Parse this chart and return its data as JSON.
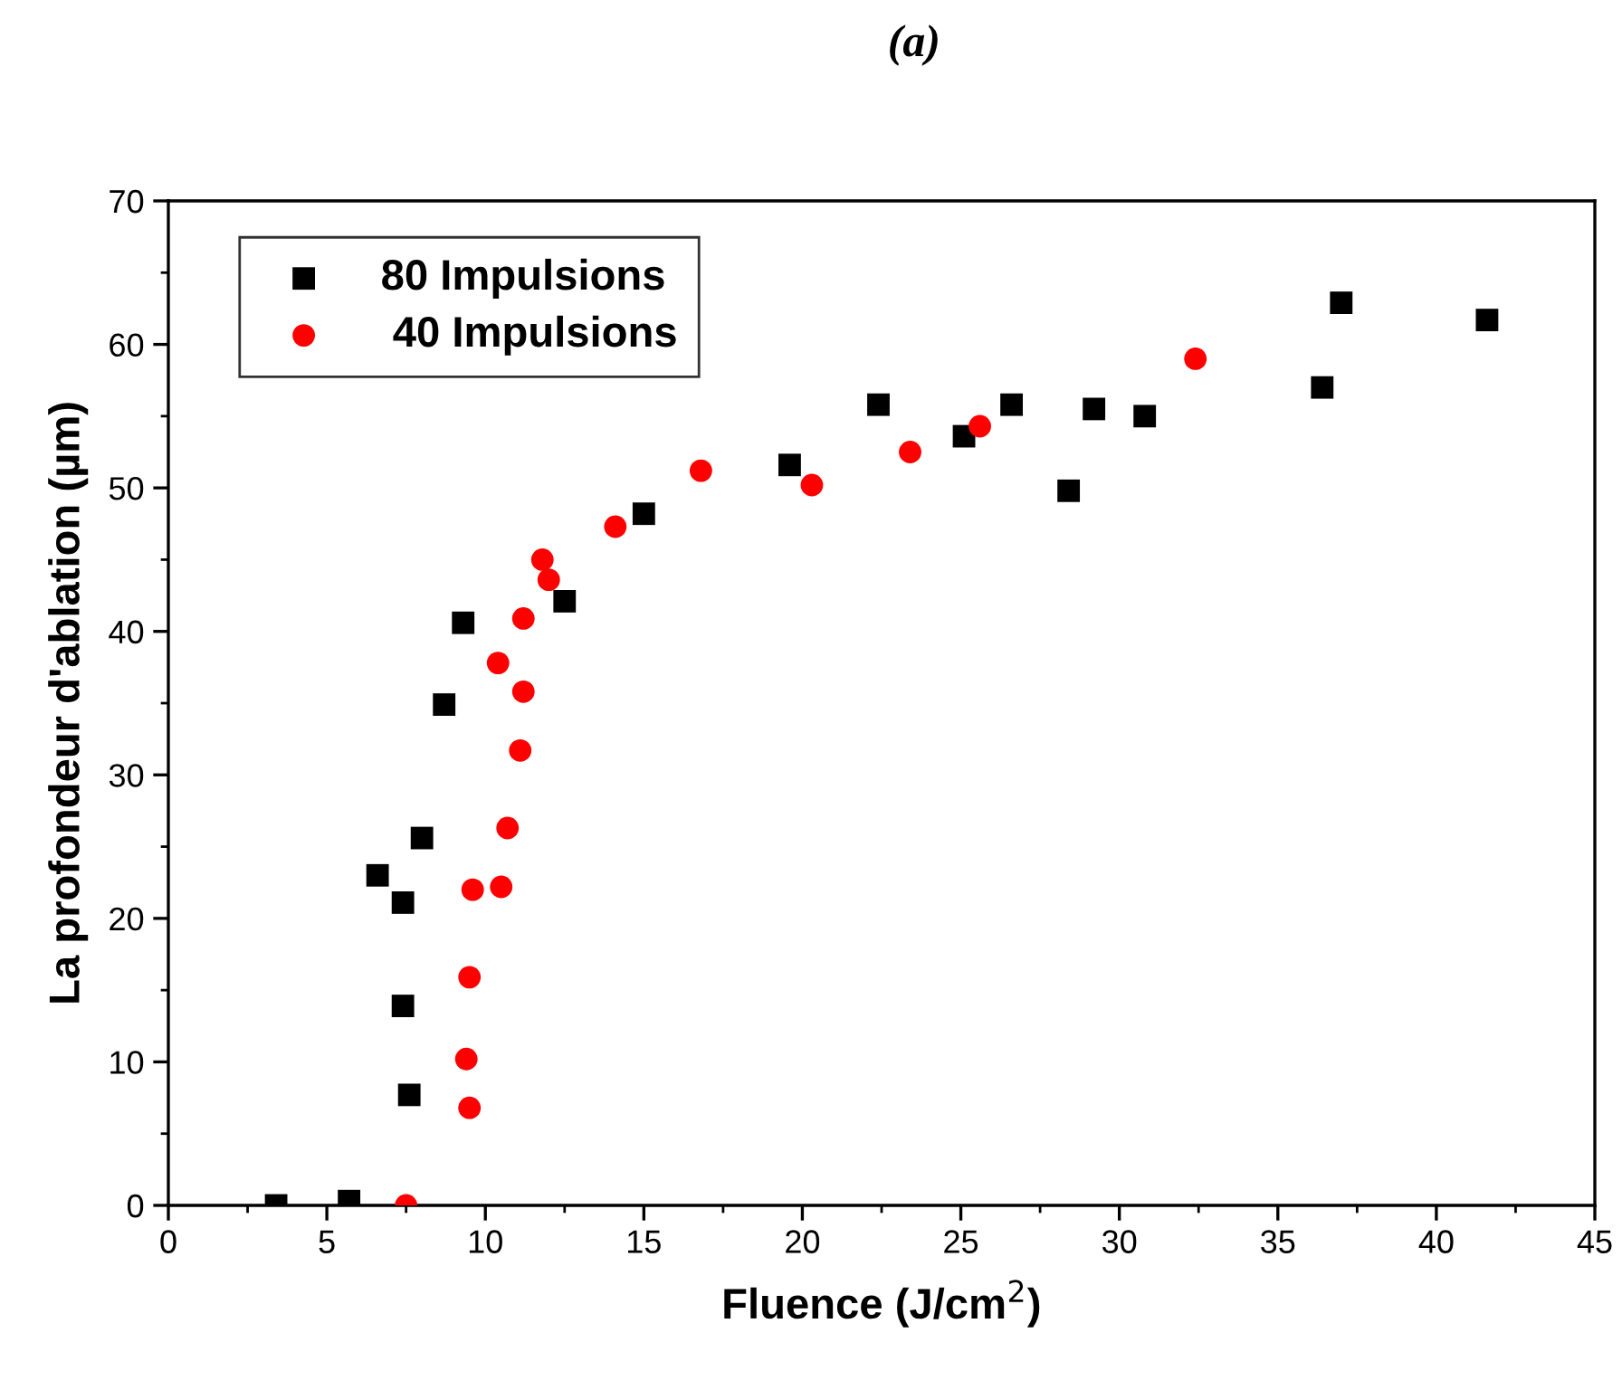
{
  "chart_data": {
    "type": "scatter",
    "title": "(a)",
    "xlabel": "Fluence (J/cm$^{2}$)",
    "ylabel": "La profondeur d'ablation (µm)",
    "xlim": [
      0,
      45
    ],
    "ylim": [
      0,
      70
    ],
    "xticks": [
      0,
      5,
      10,
      15,
      20,
      25,
      30,
      35,
      40,
      45
    ],
    "yticks": [
      0,
      10,
      20,
      30,
      40,
      50,
      60,
      70
    ],
    "grid": false,
    "legend": "top left",
    "series": [
      {
        "name": "80 Impulsions",
        "color": "#000000",
        "marker": "square",
        "x": [
          3.4,
          5.7,
          6.6,
          7.4,
          7.4,
          7.6,
          8.0,
          8.7,
          9.3,
          12.5,
          15.0,
          19.6,
          22.4,
          25.1,
          26.6,
          28.4,
          29.2,
          30.8,
          36.4,
          37.0,
          41.6
        ],
        "values": [
          0,
          0.3,
          23,
          21.1,
          13.9,
          7.7,
          25.6,
          34.9,
          40.6,
          42.1,
          48.2,
          51.6,
          55.8,
          53.6,
          55.8,
          49.8,
          55.5,
          55.0,
          57.0,
          62.9,
          61.7
        ]
      },
      {
        "name": " 40 Impulsions",
        "color": "#ff0000",
        "marker": "circle",
        "x": [
          7.5,
          9.5,
          9.4,
          9.5,
          9.6,
          10.5,
          10.7,
          11.1,
          11.2,
          10.4,
          11.2,
          12.0,
          11.8,
          14.1,
          16.8,
          20.3,
          23.4,
          25.6,
          32.4
        ],
        "values": [
          0,
          6.8,
          10.2,
          15.9,
          22.0,
          22.2,
          26.3,
          31.7,
          35.8,
          37.8,
          40.9,
          43.6,
          45.0,
          47.3,
          51.2,
          50.2,
          52.5,
          54.3,
          59.0
        ]
      }
    ]
  }
}
